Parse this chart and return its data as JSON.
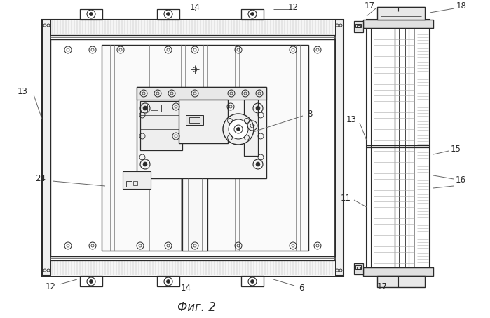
{
  "bg_color": "#ffffff",
  "line_color": "#2a2a2a",
  "gray_color": "#666666",
  "title": "Фиг. 2",
  "title_fontsize": 12,
  "fig_width": 6.99,
  "fig_height": 4.53,
  "dpi": 100
}
